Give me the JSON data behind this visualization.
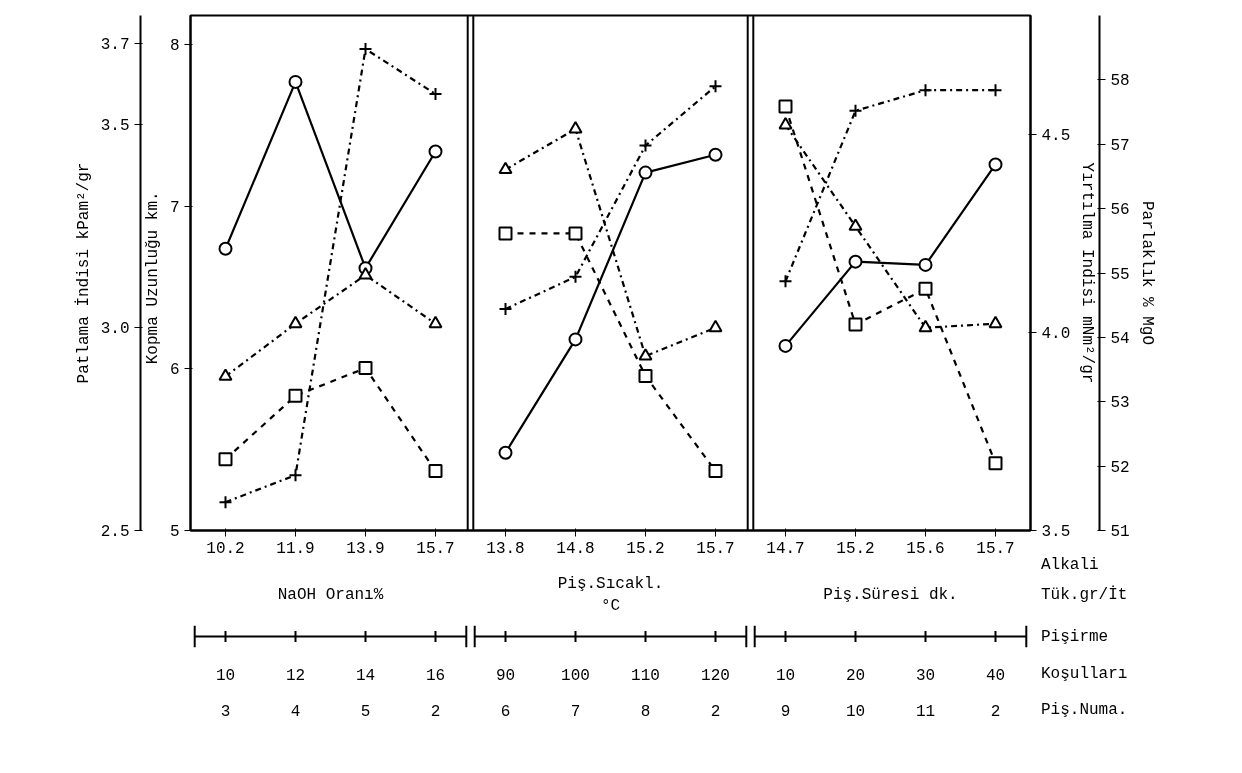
{
  "chart_data": [
    {
      "type": "line",
      "ylabel": "Kopma Uzunluğu  km.",
      "y2label": "Patlama İndisi kPam²/gr",
      "categories": [
        "10.2",
        "11.9",
        "13.9",
        "15.7",
        "13.8",
        "14.8",
        "15.2",
        "15.7",
        "14.7",
        "15.2",
        "15.6",
        "15.7"
      ],
      "ylim": [
        5,
        8.18
      ],
      "yticks": [
        5,
        6,
        7,
        8
      ],
      "y2lim": [
        2.5,
        3.77
      ],
      "y2ticks": [
        2.5,
        {
          "value": 3.0,
          "label": "3.0"
        },
        3.5,
        3.7
      ],
      "series": [
        {
          "color": "#000000",
          "marker": "circle",
          "line_style": "solid",
          "values": [
            6.74,
            7.77,
            6.62,
            7.34,
            5.48,
            6.18,
            7.21,
            7.32,
            6.14,
            6.66,
            6.64,
            7.26
          ]
        },
        {
          "color": "#000000",
          "marker": "triangle",
          "line_style": "dashdot",
          "axis": "y2",
          "values": [
            2.88,
            3.01,
            3.13,
            3.01,
            3.39,
            3.49,
            2.93,
            3.0,
            3.5,
            3.25,
            3.0,
            3.01
          ]
        }
      ],
      "annotations": [
        "NaOH Oranı%",
        "Piş.Sıcakl.\n°C",
        "Piş.Süresi dk.",
        "Alkali\nTük.gr/İt",
        "Pişirme\nKoşulları",
        "Piş.Numa.",
        "10",
        "12",
        "14",
        "16",
        "90",
        "100",
        "110",
        "120",
        "10",
        "20",
        "30",
        "40",
        "3",
        "4",
        "5",
        "2",
        "6",
        "7",
        "8",
        "2",
        "9",
        "10",
        "11",
        "2"
      ]
    },
    {
      "type": "line",
      "ylabel": "Yırtılma Indisi mNm²/gr",
      "y2label": "Parlaklık % MgO",
      "tick_labels": "y",
      "categories": [
        "10.2",
        "11.9",
        "13.9",
        "15.7",
        "13.8",
        "14.8",
        "15.2",
        "15.7",
        "14.7",
        "15.2",
        "15.6",
        "15.7"
      ],
      "ylim": [
        3.5,
        4.8
      ],
      "yticks": [
        3.5,
        {
          "value": 4.0,
          "label": "4.0"
        },
        4.5
      ],
      "y2lim": [
        51,
        59
      ],
      "y2ticks": [
        51,
        52,
        53,
        54,
        55,
        56,
        57,
        58
      ],
      "series": [
        {
          "color": "#000000",
          "marker": "square",
          "line_style": "dashed",
          "values": [
            3.68,
            3.84,
            3.91,
            3.65,
            4.25,
            4.25,
            3.89,
            3.65,
            4.57,
            4.02,
            4.11,
            3.67
          ]
        },
        {
          "color": "#000000",
          "marker": "cross",
          "line_style": "dashdot",
          "axis": "y2",
          "values": [
            51.44,
            51.86,
            58.48,
            57.78,
            54.44,
            54.94,
            56.98,
            57.9,
            54.87,
            57.52,
            57.84,
            57.84
          ]
        }
      ]
    }
  ]
}
